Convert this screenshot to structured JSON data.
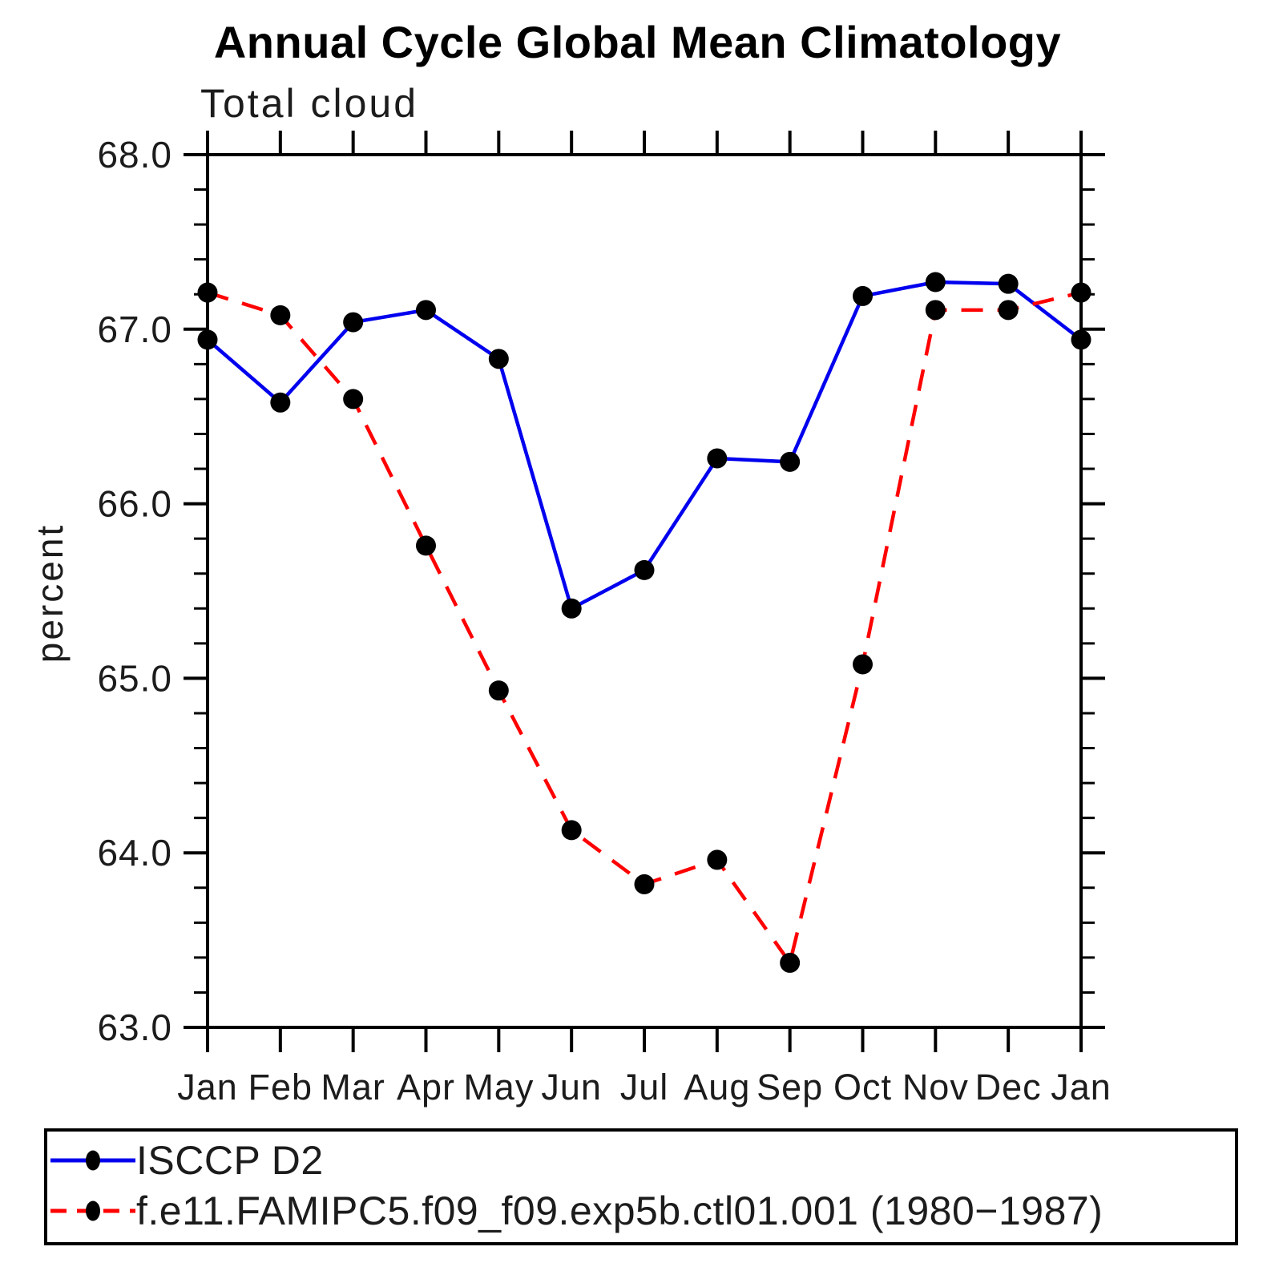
{
  "chart_data": {
    "type": "line",
    "title": "Annual Cycle Global Mean Climatology",
    "subtitle": "Total cloud",
    "xlabel": "",
    "ylabel": "percent",
    "categories": [
      "Jan",
      "Feb",
      "Mar",
      "Apr",
      "May",
      "Jun",
      "Jul",
      "Aug",
      "Sep",
      "Oct",
      "Nov",
      "Dec",
      "Jan"
    ],
    "series": [
      {
        "name": "ISCCP D2",
        "color": "#0000ee",
        "line_style": "solid",
        "marker": "black-dot",
        "values": [
          66.94,
          66.58,
          67.04,
          67.11,
          66.83,
          65.4,
          65.62,
          66.26,
          66.24,
          67.19,
          67.27,
          67.26,
          66.94
        ]
      },
      {
        "name": "f.e11.FAMIPC5.f09_f09.exp5b.ctl01.001 (1980−1987)",
        "color": "#ff0000",
        "line_style": "dashed",
        "marker": "black-dot",
        "values": [
          67.21,
          67.08,
          66.6,
          65.76,
          64.93,
          64.13,
          63.82,
          63.96,
          63.37,
          65.08,
          67.11,
          67.11,
          67.21
        ]
      }
    ],
    "ylim": [
      63.0,
      68.0
    ],
    "ytick_major_step": 1.0,
    "ytick_minor_step": 0.2,
    "ytick_labels": [
      "63.0",
      "64.0",
      "65.0",
      "66.0",
      "67.0",
      "68.0"
    ],
    "grid": false,
    "frame": "box-with-outward-ticks",
    "legend_position": "bottom",
    "marker_color": "#000000",
    "axis_color": "#000000"
  }
}
